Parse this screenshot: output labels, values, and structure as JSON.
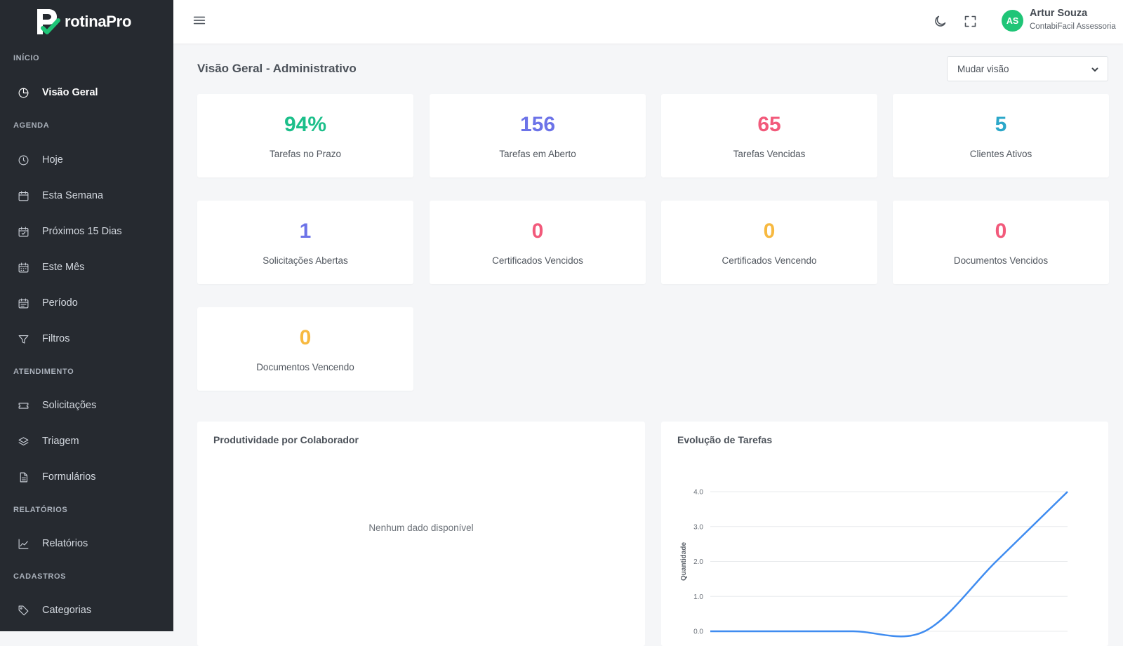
{
  "app": {
    "brand": "rotinaPro"
  },
  "sidebar": {
    "sections": [
      {
        "title": "INÍCIO",
        "items": [
          {
            "label": "Visão Geral",
            "icon": "pie-chart-icon",
            "active": true
          }
        ]
      },
      {
        "title": "AGENDA",
        "items": [
          {
            "label": "Hoje",
            "icon": "clock-icon"
          },
          {
            "label": "Esta Semana",
            "icon": "calendar-icon"
          },
          {
            "label": "Próximos 15 Dias",
            "icon": "calendar-check-icon"
          },
          {
            "label": "Este Mês",
            "icon": "calendar-grid-icon"
          },
          {
            "label": "Período",
            "icon": "calendar-range-icon"
          },
          {
            "label": "Filtros",
            "icon": "filter-icon"
          }
        ]
      },
      {
        "title": "ATENDIMENTO",
        "items": [
          {
            "label": "Solicitações",
            "icon": "ticket-icon"
          },
          {
            "label": "Triagem",
            "icon": "layers-icon"
          },
          {
            "label": "Formulários",
            "icon": "file-text-icon"
          }
        ]
      },
      {
        "title": "RELATÓRIOS",
        "items": [
          {
            "label": "Relatórios",
            "icon": "line-chart-icon"
          }
        ]
      },
      {
        "title": "CADASTROS",
        "items": [
          {
            "label": "Categorias",
            "icon": "tag-icon"
          }
        ]
      }
    ]
  },
  "header": {
    "user": {
      "initials": "AS",
      "name": "Artur Souza",
      "company": "ContabiFacil Assessoria"
    },
    "icons": [
      "menu-icon",
      "moon-icon",
      "fullscreen-icon"
    ]
  },
  "main": {
    "title": "Visão Geral - Administrativo",
    "view_select": {
      "value": "Mudar visão"
    },
    "stats": [
      {
        "value": "94%",
        "label": "Tarefas no Prazo",
        "color": "#1cbf8a"
      },
      {
        "value": "156",
        "label": "Tarefas em Aberto",
        "color": "#6c73e8"
      },
      {
        "value": "65",
        "label": "Tarefas Vencidas",
        "color": "#f25a7b"
      },
      {
        "value": "5",
        "label": "Clientes Ativos",
        "color": "#2ba7c9"
      },
      {
        "value": "1",
        "label": "Solicitações Abertas",
        "color": "#6c73e8"
      },
      {
        "value": "0",
        "label": "Certificados Vencidos",
        "color": "#f25a7b"
      },
      {
        "value": "0",
        "label": "Certificados Vencendo",
        "color": "#f7b940"
      },
      {
        "value": "0",
        "label": "Documentos Vencidos",
        "color": "#f25a7b"
      },
      {
        "value": "0",
        "label": "Documentos Vencendo",
        "color": "#f7b940"
      }
    ],
    "productivity": {
      "title": "Produtividade por Colaborador",
      "empty_message": "Nenhum dado disponível"
    },
    "evolution": {
      "title": "Evolução de Tarefas"
    }
  },
  "chart_data": {
    "type": "line",
    "title": "Evolução de Tarefas",
    "ylabel": "Quantidade",
    "xlabel": "",
    "ylim": [
      0,
      4
    ],
    "y_ticks": [
      "0.0",
      "1.0",
      "2.0",
      "3.0",
      "4.0"
    ],
    "grid": true,
    "series": [
      {
        "values": [
          0,
          0,
          0,
          0,
          2,
          4
        ],
        "color": "#3f8cf0"
      }
    ]
  }
}
